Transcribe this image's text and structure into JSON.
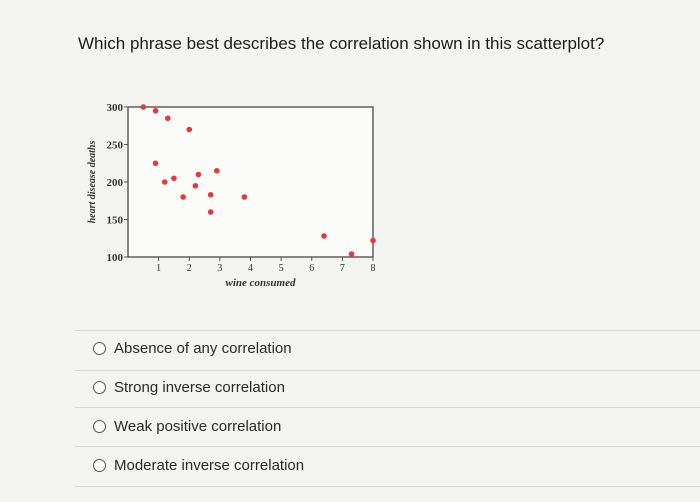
{
  "question": {
    "text": "Which phrase best describes the correlation shown in this scatterplot?"
  },
  "chart_data": {
    "type": "scatter",
    "xlabel": "wine consumed",
    "ylabel": "heart disease deaths",
    "x_ticks": [
      "1",
      "2",
      "3",
      "4",
      "5",
      "6",
      "7",
      "8"
    ],
    "y_ticks": [
      "100",
      "150",
      "200",
      "250",
      "300"
    ],
    "xlim": [
      0,
      8
    ],
    "ylim": [
      100,
      300
    ],
    "grid": false,
    "point_color": "#e03a3a",
    "points": [
      {
        "x": 0.5,
        "y": 300
      },
      {
        "x": 0.9,
        "y": 295
      },
      {
        "x": 1.3,
        "y": 285
      },
      {
        "x": 2.0,
        "y": 270
      },
      {
        "x": 0.9,
        "y": 225
      },
      {
        "x": 1.2,
        "y": 200
      },
      {
        "x": 1.5,
        "y": 205
      },
      {
        "x": 2.3,
        "y": 210
      },
      {
        "x": 2.9,
        "y": 215
      },
      {
        "x": 2.2,
        "y": 195
      },
      {
        "x": 1.8,
        "y": 180
      },
      {
        "x": 2.7,
        "y": 183
      },
      {
        "x": 2.7,
        "y": 160
      },
      {
        "x": 3.8,
        "y": 180
      },
      {
        "x": 6.4,
        "y": 128
      },
      {
        "x": 7.3,
        "y": 104
      },
      {
        "x": 8.0,
        "y": 122
      }
    ]
  },
  "options": [
    {
      "label": "Absence of any correlation"
    },
    {
      "label": "Strong inverse correlation"
    },
    {
      "label": "Weak positive correlation"
    },
    {
      "label": "Moderate inverse correlation"
    }
  ]
}
